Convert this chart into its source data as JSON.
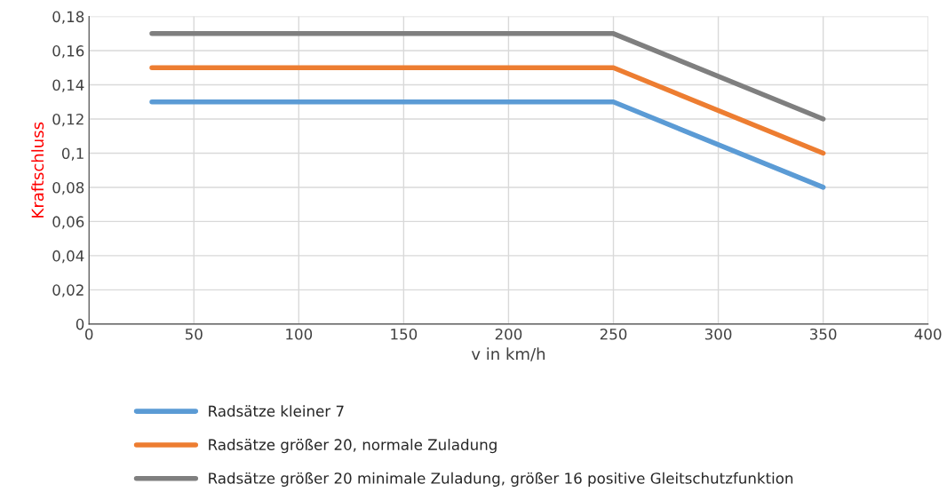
{
  "chart_data": {
    "type": "line",
    "xlabel": "v in km/h",
    "ylabel": "Kraftschluss",
    "x": [
      30,
      250,
      350
    ],
    "series": [
      {
        "name": "Radsätze kleiner 7",
        "color": "#5b9bd5",
        "values": [
          0.13,
          0.13,
          0.08
        ]
      },
      {
        "name": "Radsätze größer 20, normale Zuladung",
        "color": "#ed7d31",
        "values": [
          0.15,
          0.15,
          0.1
        ]
      },
      {
        "name": "Radsätze größer 20 minimale Zuladung, größer 16 positive Gleitschutzfunktion",
        "color": "#7f7f7f",
        "values": [
          0.17,
          0.17,
          0.12
        ]
      }
    ],
    "xlim": [
      0,
      400
    ],
    "xticks": [
      0,
      50,
      100,
      150,
      200,
      250,
      300,
      350,
      400
    ],
    "ylim": [
      0,
      0.18
    ],
    "yticks": [
      {
        "value": 0,
        "label": "0"
      },
      {
        "value": 0.02,
        "label": "0,02"
      },
      {
        "value": 0.04,
        "label": "0,04"
      },
      {
        "value": 0.06,
        "label": "0,06"
      },
      {
        "value": 0.08,
        "label": "0,08"
      },
      {
        "value": 0.1,
        "label": "0,1"
      },
      {
        "value": 0.12,
        "label": "0,12"
      },
      {
        "value": 0.14,
        "label": "0,14"
      },
      {
        "value": 0.16,
        "label": "0,16"
      },
      {
        "value": 0.18,
        "label": "0,18"
      }
    ],
    "grid": true,
    "legend": "bottom",
    "marker": "none",
    "line_style": "solid"
  }
}
